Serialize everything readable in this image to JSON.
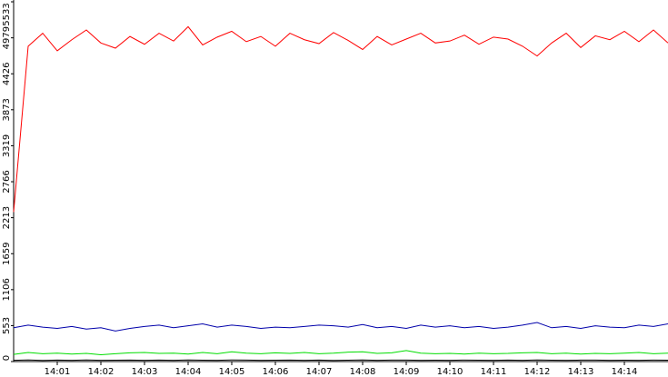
{
  "chart_data": {
    "type": "line",
    "x": [
      0,
      20,
      40,
      60,
      80,
      100,
      120,
      140,
      160,
      180,
      200,
      220,
      240,
      260,
      280,
      300,
      320,
      340,
      360,
      380,
      400,
      420,
      440,
      460,
      480,
      500,
      520,
      540,
      560,
      580,
      600,
      620,
      640,
      660,
      680,
      700,
      720,
      740,
      760,
      780,
      800,
      820,
      840,
      860,
      880,
      900
    ],
    "xlim": [
      0,
      900
    ],
    "xticks": [
      {
        "value": 60,
        "label": "14:01"
      },
      {
        "value": 120,
        "label": "14:02"
      },
      {
        "value": 180,
        "label": "14:03"
      },
      {
        "value": 240,
        "label": "14:04"
      },
      {
        "value": 300,
        "label": "14:05"
      },
      {
        "value": 360,
        "label": "14:06"
      },
      {
        "value": 420,
        "label": "14:07"
      },
      {
        "value": 480,
        "label": "14:08"
      },
      {
        "value": 540,
        "label": "14:09"
      },
      {
        "value": 600,
        "label": "14:10"
      },
      {
        "value": 660,
        "label": "14:11"
      },
      {
        "value": 720,
        "label": "14:12"
      },
      {
        "value": 780,
        "label": "14:13"
      },
      {
        "value": 840,
        "label": "14:14"
      }
    ],
    "ylim": [
      0,
      5533
    ],
    "yticks": [
      0,
      553,
      1106,
      1659,
      2213,
      2766,
      3319,
      3873,
      4426,
      4979,
      5533
    ],
    "series": [
      {
        "color": "#ff0000",
        "values": [
          2300,
          4850,
          5050,
          4780,
          4950,
          5100,
          4900,
          4820,
          5000,
          4880,
          5050,
          4930,
          5150,
          4870,
          4990,
          5080,
          4920,
          5000,
          4850,
          5050,
          4950,
          4890,
          5060,
          4940,
          4800,
          5000,
          4870,
          4960,
          5050,
          4900,
          4930,
          5020,
          4880,
          4990,
          4960,
          4850,
          4700,
          4900,
          5050,
          4830,
          5010,
          4950,
          5080,
          4920,
          5100,
          4900
        ]
      },
      {
        "color": "#0000aa",
        "values": [
          520,
          560,
          530,
          510,
          540,
          500,
          520,
          470,
          510,
          540,
          560,
          520,
          550,
          580,
          530,
          560,
          540,
          510,
          530,
          520,
          540,
          560,
          550,
          530,
          570,
          520,
          540,
          510,
          560,
          530,
          550,
          520,
          540,
          510,
          530,
          560,
          600,
          520,
          540,
          510,
          550,
          530,
          520,
          560,
          540,
          580
        ]
      },
      {
        "color": "#00dd00",
        "values": [
          110,
          140,
          120,
          130,
          115,
          125,
          105,
          120,
          135,
          140,
          125,
          130,
          115,
          140,
          120,
          150,
          130,
          120,
          135,
          125,
          140,
          120,
          130,
          145,
          150,
          125,
          135,
          170,
          130,
          120,
          125,
          115,
          130,
          120,
          125,
          135,
          140,
          120,
          130,
          115,
          125,
          120,
          130,
          140,
          120,
          130
        ]
      },
      {
        "color": "#000000",
        "values": [
          20,
          25,
          18,
          22,
          20,
          24,
          19,
          21,
          23,
          20,
          22,
          19,
          25,
          21,
          20,
          24,
          22,
          19,
          21,
          23,
          20,
          22,
          18,
          21,
          24,
          20,
          23,
          22,
          19,
          21,
          20,
          23,
          21,
          20,
          22,
          19,
          24,
          21,
          20,
          22,
          23,
          19,
          21,
          20,
          22,
          21
        ]
      }
    ]
  }
}
